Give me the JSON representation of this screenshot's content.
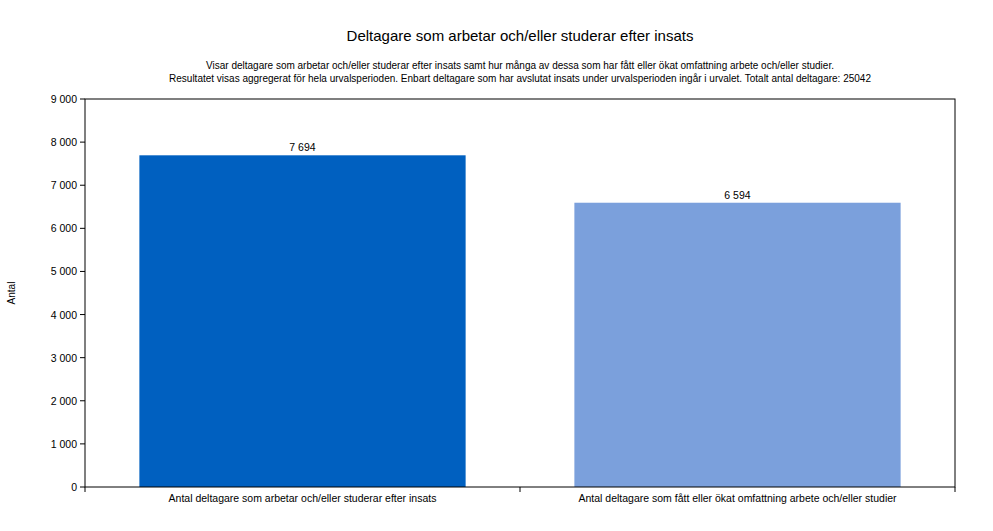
{
  "chart_data": {
    "type": "bar",
    "title": "Deltagare som arbetar och/eller studerar efter insats",
    "subtitle": [
      "Visar deltagare som arbetar och/eller studerar efter insats samt hur många av dessa som har fått eller ökat omfattning arbete och/eller studier.",
      "Resultatet visas aggregerat för hela urvalsperioden. Enbart deltagare som har avslutat insats under urvalsperioden ingår i urvalet. Totalt antal deltagare: 25042"
    ],
    "y_label": "Antal",
    "categories": [
      "Antal deltagare som arbetar och/eller studerar efter insats",
      "Antal deltagare som fått eller ökat omfattning arbete och/eller studier"
    ],
    "values": [
      7694,
      6594
    ],
    "value_labels": [
      "7 694",
      "6 594"
    ],
    "colors": [
      "#0060c0",
      "#7ba0dc"
    ],
    "ylim": [
      0,
      9000
    ],
    "yticks": [
      0,
      {
        "value": 1000,
        "label": "1 000"
      },
      {
        "value": 2000,
        "label": "2 000"
      },
      {
        "value": 3000,
        "label": "3 000"
      },
      {
        "value": 4000,
        "label": "4 000"
      },
      {
        "value": 5000,
        "label": "5 000"
      },
      {
        "value": 6000,
        "label": "6 000"
      },
      {
        "value": 7000,
        "label": "7 000"
      },
      {
        "value": 8000,
        "label": "8 000"
      },
      {
        "value": 9000,
        "label": "9 000"
      }
    ],
    "grid": false,
    "data_labels": true
  }
}
